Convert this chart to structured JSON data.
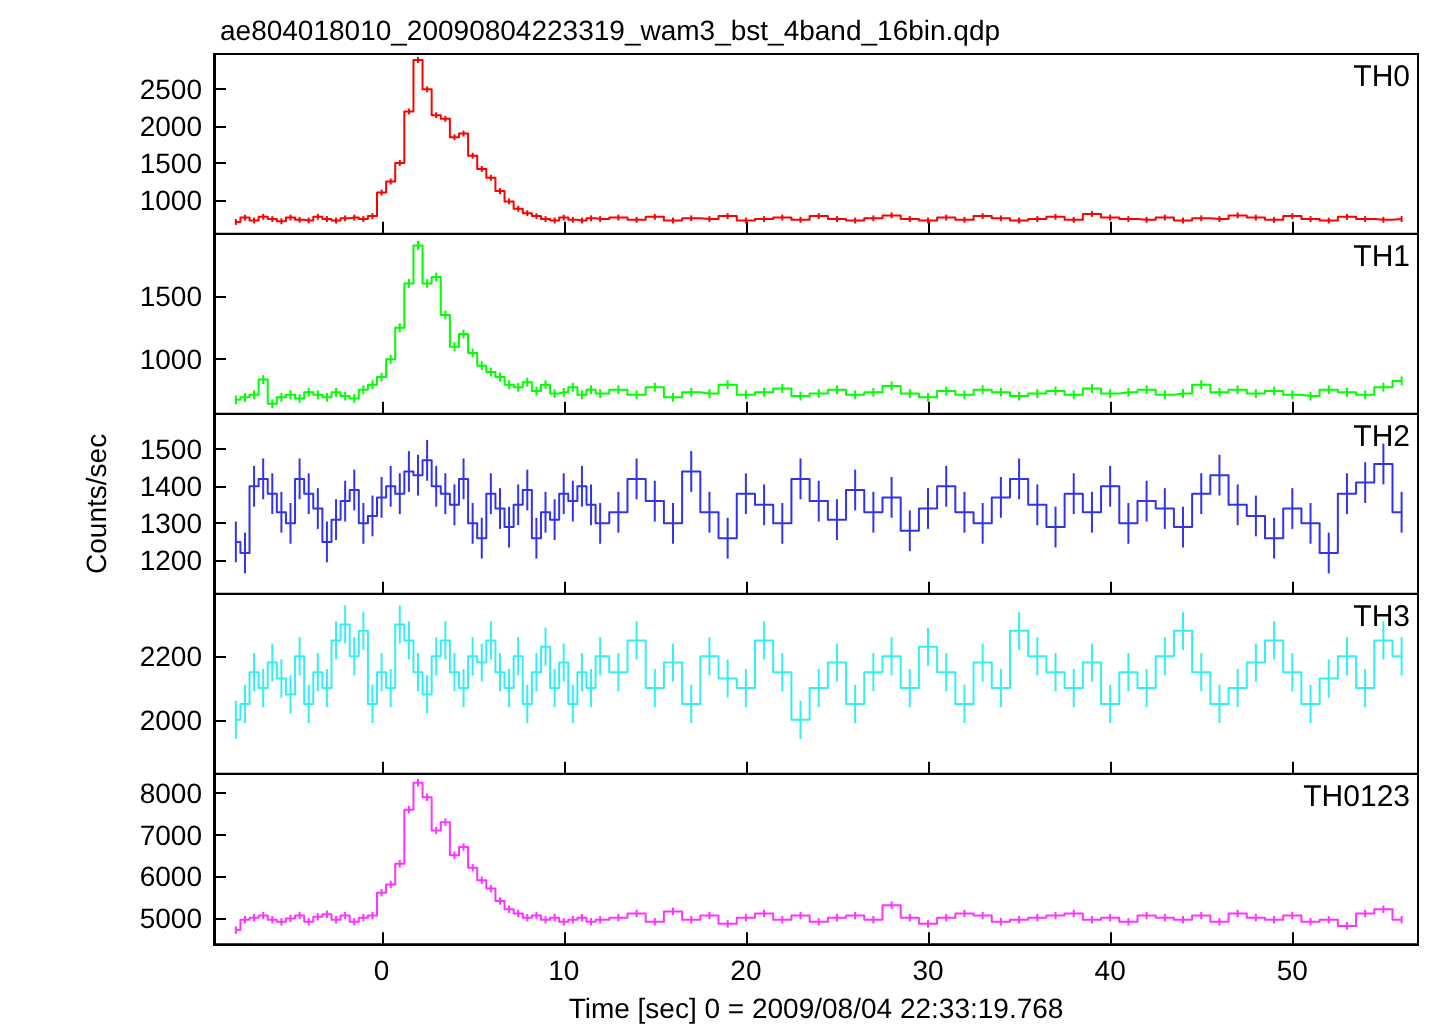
{
  "chart_data": [
    {
      "type": "step",
      "title": "ae804018010_20090804223319_wam3_bst_4band_16bin.qdp",
      "marker": "none",
      "tick_labels": "y",
      "xlim": [
        -9.2,
        56.9
      ],
      "xticks": [
        0,
        10,
        20,
        30,
        40,
        50
      ],
      "ylim": [
        540,
        2980
      ],
      "yticks": [
        1000,
        1500,
        2000,
        2500
      ],
      "x": [
        -8,
        -7.5,
        -7,
        -6.5,
        -6,
        -5.5,
        -5,
        -4.5,
        -4,
        -3.5,
        -3,
        -2.5,
        -2,
        -1.5,
        -1,
        -0.5,
        0,
        0.5,
        1,
        1.5,
        2,
        2.5,
        3,
        3.5,
        4,
        4.5,
        5,
        5.5,
        6,
        6.5,
        7,
        7.5,
        8,
        8.5,
        9,
        9.5,
        10,
        10.5,
        11,
        11.5,
        12,
        13,
        14,
        15,
        16,
        17,
        18,
        19,
        20,
        21,
        22,
        23,
        24,
        25,
        26,
        27,
        28,
        29,
        30,
        31,
        32,
        33,
        34,
        35,
        36,
        37,
        38,
        39,
        40,
        41,
        42,
        43,
        44,
        45,
        46,
        47,
        48,
        49,
        50,
        51,
        52,
        53,
        54,
        55,
        56
      ],
      "series": [
        {
          "name": "TH0",
          "color": "#ff0000",
          "values": [
            700,
            760,
            720,
            770,
            740,
            710,
            760,
            730,
            720,
            770,
            740,
            720,
            750,
            760,
            740,
            780,
            1100,
            1250,
            1500,
            2200,
            2900,
            2500,
            2150,
            2100,
            1850,
            1900,
            1600,
            1420,
            1300,
            1120,
            980,
            880,
            820,
            780,
            740,
            720,
            760,
            730,
            720,
            750,
            740,
            760,
            730,
            770,
            720,
            750,
            740,
            780,
            720,
            740,
            760,
            730,
            780,
            740,
            720,
            750,
            790,
            740,
            720,
            760,
            730,
            780,
            750,
            720,
            740,
            770,
            730,
            810,
            760,
            740,
            730,
            760,
            720,
            750,
            740,
            790,
            760,
            730,
            780,
            740,
            720,
            770,
            740,
            730,
            740
          ],
          "errors": [
            40,
            40,
            40,
            40,
            40,
            40,
            40,
            40,
            40,
            40,
            40,
            40,
            40,
            40,
            40,
            40,
            40,
            40,
            40,
            40,
            40,
            40,
            40,
            40,
            40,
            40,
            40,
            40,
            40,
            40,
            40,
            40,
            40,
            40,
            40,
            40,
            40,
            40,
            40,
            40,
            40,
            40,
            40,
            40,
            40,
            40,
            40,
            40,
            40,
            40,
            40,
            40,
            40,
            40,
            40,
            40,
            40,
            40,
            40,
            40,
            40,
            40,
            40,
            40,
            40,
            40,
            40,
            40,
            40,
            40,
            40,
            40,
            40,
            40,
            40,
            40,
            40,
            40,
            40,
            40,
            40,
            40,
            40,
            40,
            40
          ]
        }
      ]
    },
    {
      "type": "step",
      "marker": "none",
      "tick_labels": "y",
      "xlim": [
        -9.2,
        56.9
      ],
      "xticks": [
        0,
        10,
        20,
        30,
        40,
        50
      ],
      "ylim": [
        570,
        1990
      ],
      "yticks": [
        1000,
        1500
      ],
      "x": [
        -8,
        -7.5,
        -7,
        -6.5,
        -6,
        -5.5,
        -5,
        -4.5,
        -4,
        -3.5,
        -3,
        -2.5,
        -2,
        -1.5,
        -1,
        -0.5,
        0,
        0.5,
        1,
        1.5,
        2,
        2.5,
        3,
        3.5,
        4,
        4.5,
        5,
        5.5,
        6,
        6.5,
        7,
        7.5,
        8,
        8.5,
        9,
        9.5,
        10,
        10.5,
        11,
        11.5,
        12,
        13,
        14,
        15,
        16,
        17,
        18,
        19,
        20,
        21,
        22,
        23,
        24,
        25,
        26,
        27,
        28,
        29,
        30,
        31,
        32,
        33,
        34,
        35,
        36,
        37,
        38,
        39,
        40,
        41,
        42,
        43,
        44,
        45,
        46,
        47,
        48,
        49,
        50,
        51,
        52,
        53,
        54,
        55,
        56
      ],
      "series": [
        {
          "name": "TH1",
          "color": "#00ff00",
          "values": [
            680,
            700,
            720,
            840,
            650,
            700,
            720,
            690,
            740,
            720,
            700,
            740,
            710,
            690,
            760,
            800,
            860,
            1000,
            1250,
            1600,
            1900,
            1600,
            1650,
            1350,
            1100,
            1200,
            1050,
            950,
            900,
            860,
            800,
            780,
            820,
            750,
            800,
            730,
            740,
            780,
            720,
            760,
            730,
            760,
            720,
            780,
            700,
            740,
            730,
            800,
            720,
            740,
            770,
            710,
            730,
            760,
            720,
            740,
            790,
            730,
            700,
            750,
            720,
            760,
            740,
            710,
            730,
            750,
            720,
            770,
            730,
            740,
            760,
            720,
            730,
            800,
            740,
            760,
            730,
            750,
            720,
            710,
            760,
            740,
            720,
            780,
            830
          ],
          "errors": [
            35,
            35,
            35,
            35,
            35,
            35,
            35,
            35,
            35,
            35,
            35,
            35,
            35,
            35,
            35,
            35,
            35,
            35,
            35,
            35,
            35,
            35,
            35,
            35,
            35,
            35,
            35,
            35,
            35,
            35,
            35,
            35,
            35,
            35,
            35,
            35,
            35,
            35,
            35,
            35,
            35,
            35,
            35,
            35,
            35,
            35,
            35,
            35,
            35,
            35,
            35,
            35,
            35,
            35,
            35,
            35,
            35,
            35,
            35,
            35,
            35,
            35,
            35,
            35,
            35,
            35,
            35,
            35,
            35,
            35,
            35,
            35,
            35,
            35,
            35,
            35,
            35,
            35,
            35,
            35,
            35,
            35,
            35,
            35,
            35
          ]
        }
      ]
    },
    {
      "type": "step",
      "ylabel": "Counts/sec",
      "marker": "none",
      "tick_labels": "y",
      "xlim": [
        -9.2,
        56.9
      ],
      "xticks": [
        0,
        10,
        20,
        30,
        40,
        50
      ],
      "ylim": [
        1110,
        1595
      ],
      "yticks": [
        1200,
        1300,
        1400,
        1500
      ],
      "x": [
        -8,
        -7.5,
        -7,
        -6.5,
        -6,
        -5.5,
        -5,
        -4.5,
        -4,
        -3.5,
        -3,
        -2.5,
        -2,
        -1.5,
        -1,
        -0.5,
        0,
        0.5,
        1,
        1.5,
        2,
        2.5,
        3,
        3.5,
        4,
        4.5,
        5,
        5.5,
        6,
        6.5,
        7,
        7.5,
        8,
        8.5,
        9,
        9.5,
        10,
        10.5,
        11,
        11.5,
        12,
        13,
        14,
        15,
        16,
        17,
        18,
        19,
        20,
        21,
        22,
        23,
        24,
        25,
        26,
        27,
        28,
        29,
        30,
        31,
        32,
        33,
        34,
        35,
        36,
        37,
        38,
        39,
        40,
        41,
        42,
        43,
        44,
        45,
        46,
        47,
        48,
        49,
        50,
        51,
        52,
        53,
        54,
        55,
        56
      ],
      "series": [
        {
          "name": "TH2",
          "color": "#3333ee",
          "values": [
            1250,
            1220,
            1400,
            1420,
            1380,
            1330,
            1300,
            1420,
            1380,
            1340,
            1250,
            1310,
            1360,
            1390,
            1300,
            1320,
            1370,
            1400,
            1380,
            1440,
            1430,
            1470,
            1400,
            1380,
            1350,
            1420,
            1300,
            1260,
            1380,
            1340,
            1290,
            1350,
            1390,
            1260,
            1330,
            1310,
            1380,
            1360,
            1400,
            1350,
            1300,
            1330,
            1420,
            1360,
            1300,
            1440,
            1330,
            1260,
            1380,
            1350,
            1300,
            1420,
            1360,
            1310,
            1390,
            1330,
            1370,
            1280,
            1340,
            1400,
            1330,
            1300,
            1370,
            1420,
            1350,
            1290,
            1380,
            1330,
            1400,
            1300,
            1360,
            1340,
            1290,
            1380,
            1430,
            1350,
            1320,
            1260,
            1340,
            1300,
            1220,
            1380,
            1410,
            1460,
            1330
          ],
          "errors": [
            55,
            55,
            55,
            55,
            55,
            55,
            55,
            55,
            55,
            55,
            55,
            55,
            55,
            55,
            55,
            55,
            55,
            55,
            55,
            55,
            55,
            55,
            55,
            55,
            55,
            55,
            55,
            55,
            55,
            55,
            55,
            55,
            55,
            55,
            55,
            55,
            55,
            55,
            55,
            55,
            55,
            55,
            55,
            55,
            55,
            55,
            55,
            55,
            55,
            55,
            55,
            55,
            55,
            55,
            55,
            55,
            55,
            55,
            55,
            55,
            55,
            55,
            55,
            55,
            55,
            55,
            55,
            55,
            55,
            55,
            55,
            55,
            55,
            55,
            55,
            55,
            55,
            55,
            55,
            55,
            55,
            55,
            55,
            55,
            55
          ]
        }
      ]
    },
    {
      "type": "step",
      "marker": "none",
      "tick_labels": "y",
      "xlim": [
        -9.2,
        56.9
      ],
      "xticks": [
        0,
        10,
        20,
        30,
        40,
        50
      ],
      "ylim": [
        1830,
        2396
      ],
      "yticks": [
        2000,
        2200
      ],
      "x": [
        -8,
        -7.5,
        -7,
        -6.5,
        -6,
        -5.5,
        -5,
        -4.5,
        -4,
        -3.5,
        -3,
        -2.5,
        -2,
        -1.5,
        -1,
        -0.5,
        0,
        0.5,
        1,
        1.5,
        2,
        2.5,
        3,
        3.5,
        4,
        4.5,
        5,
        5.5,
        6,
        6.5,
        7,
        7.5,
        8,
        8.5,
        9,
        9.5,
        10,
        10.5,
        11,
        11.5,
        12,
        13,
        14,
        15,
        16,
        17,
        18,
        19,
        20,
        21,
        22,
        23,
        24,
        25,
        26,
        27,
        28,
        29,
        30,
        31,
        32,
        33,
        34,
        35,
        36,
        37,
        38,
        39,
        40,
        41,
        42,
        43,
        44,
        45,
        46,
        47,
        48,
        49,
        50,
        51,
        52,
        53,
        54,
        55,
        56
      ],
      "series": [
        {
          "name": "TH3",
          "color": "#33f0f0",
          "values": [
            2000,
            2050,
            2150,
            2100,
            2180,
            2130,
            2080,
            2200,
            2050,
            2150,
            2100,
            2250,
            2300,
            2200,
            2280,
            2050,
            2150,
            2100,
            2300,
            2250,
            2150,
            2080,
            2200,
            2250,
            2150,
            2100,
            2200,
            2180,
            2250,
            2150,
            2100,
            2200,
            2050,
            2150,
            2230,
            2100,
            2180,
            2050,
            2150,
            2100,
            2200,
            2150,
            2250,
            2100,
            2180,
            2050,
            2200,
            2130,
            2100,
            2250,
            2150,
            2000,
            2100,
            2180,
            2050,
            2150,
            2200,
            2100,
            2230,
            2150,
            2050,
            2180,
            2100,
            2280,
            2200,
            2150,
            2100,
            2180,
            2050,
            2150,
            2100,
            2200,
            2280,
            2150,
            2050,
            2100,
            2180,
            2250,
            2150,
            2050,
            2130,
            2200,
            2100,
            2250,
            2200
          ],
          "errors": [
            60,
            60,
            60,
            60,
            60,
            60,
            60,
            60,
            60,
            60,
            60,
            60,
            60,
            60,
            60,
            60,
            60,
            60,
            60,
            60,
            60,
            60,
            60,
            60,
            60,
            60,
            60,
            60,
            60,
            60,
            60,
            60,
            60,
            60,
            60,
            60,
            60,
            60,
            60,
            60,
            60,
            60,
            60,
            60,
            60,
            60,
            60,
            60,
            60,
            60,
            60,
            60,
            60,
            60,
            60,
            60,
            60,
            60,
            60,
            60,
            60,
            60,
            60,
            60,
            60,
            60,
            60,
            60,
            60,
            60,
            60,
            60,
            60,
            60,
            60,
            60,
            60,
            60,
            60,
            60,
            60,
            60,
            60,
            60,
            60
          ]
        }
      ]
    },
    {
      "type": "step",
      "xlabel": "Time [sec] 0 = 2009/08/04 22:33:19.768",
      "marker": "none",
      "xlim": [
        -9.2,
        56.9
      ],
      "xticks": [
        0,
        10,
        20,
        30,
        40,
        50
      ],
      "ylim": [
        4360,
        8460
      ],
      "yticks": [
        5000,
        6000,
        7000,
        8000
      ],
      "x": [
        -8,
        -7.5,
        -7,
        -6.5,
        -6,
        -5.5,
        -5,
        -4.5,
        -4,
        -3.5,
        -3,
        -2.5,
        -2,
        -1.5,
        -1,
        -0.5,
        0,
        0.5,
        1,
        1.5,
        2,
        2.5,
        3,
        3.5,
        4,
        4.5,
        5,
        5.5,
        6,
        6.5,
        7,
        7.5,
        8,
        8.5,
        9,
        9.5,
        10,
        10.5,
        11,
        11.5,
        12,
        13,
        14,
        15,
        16,
        17,
        18,
        19,
        20,
        21,
        22,
        23,
        24,
        25,
        26,
        27,
        28,
        29,
        30,
        31,
        32,
        33,
        34,
        35,
        36,
        37,
        38,
        39,
        40,
        41,
        42,
        43,
        44,
        45,
        46,
        47,
        48,
        49,
        50,
        51,
        52,
        53,
        54,
        55,
        56
      ],
      "series": [
        {
          "name": "TH0123",
          "color": "#ff33ff",
          "values": [
            4700,
            4950,
            5000,
            5050,
            4950,
            4900,
            4980,
            5050,
            4900,
            5020,
            5080,
            4950,
            5050,
            4900,
            5000,
            5050,
            5600,
            5800,
            6300,
            7600,
            8250,
            7900,
            7100,
            7300,
            6500,
            6700,
            6200,
            5900,
            5700,
            5400,
            5200,
            5100,
            5000,
            5050,
            4950,
            5000,
            4900,
            4950,
            5000,
            4900,
            4950,
            5000,
            5100,
            4900,
            5150,
            4950,
            5050,
            4850,
            5000,
            5100,
            4950,
            5050,
            4900,
            5000,
            5050,
            4950,
            5300,
            5000,
            4850,
            5000,
            5100,
            5050,
            4900,
            4950,
            5000,
            5050,
            5100,
            4950,
            5000,
            4900,
            5050,
            5000,
            4950,
            5050,
            4900,
            5100,
            5000,
            4950,
            5050,
            4900,
            4950,
            4800,
            5100,
            5200,
            4950
          ],
          "errors": [
            90,
            90,
            90,
            90,
            90,
            90,
            90,
            90,
            90,
            90,
            90,
            90,
            90,
            90,
            90,
            90,
            90,
            90,
            90,
            90,
            90,
            90,
            90,
            90,
            90,
            90,
            90,
            90,
            90,
            90,
            90,
            90,
            90,
            90,
            90,
            90,
            90,
            90,
            90,
            90,
            90,
            90,
            90,
            90,
            90,
            90,
            90,
            90,
            90,
            90,
            90,
            90,
            90,
            90,
            90,
            90,
            90,
            90,
            90,
            90,
            90,
            90,
            90,
            90,
            90,
            90,
            90,
            90,
            90,
            90,
            90,
            90,
            90,
            90,
            90,
            90,
            90,
            90,
            90,
            90,
            90,
            90,
            90,
            90,
            90
          ]
        }
      ]
    }
  ]
}
